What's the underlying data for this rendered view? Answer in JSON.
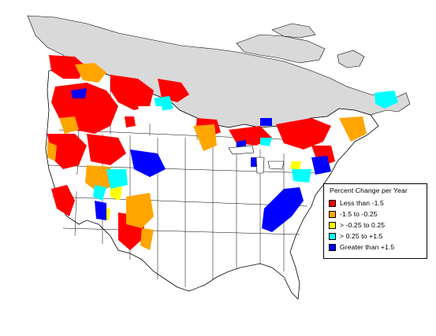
{
  "map": {
    "background_color": "#ffffff",
    "outline_color": "#000000",
    "nodata_color": "#d9d9d9",
    "nodata_region": "northern Canada / Arctic (gray, no data)"
  },
  "legend": {
    "title": "Percent Change per Year",
    "items": [
      {
        "label": "Less than -1.5",
        "color": "#ff0000"
      },
      {
        "label": "-1.5 to -0.25",
        "color": "#ffa500"
      },
      {
        "label": "> -0.25 to 0.25",
        "color": "#ffff00"
      },
      {
        "label": "> 0.25 to +1.5",
        "color": "#00ffff"
      },
      {
        "label": "Greater than +1.5",
        "color": "#0000ff"
      }
    ]
  }
}
